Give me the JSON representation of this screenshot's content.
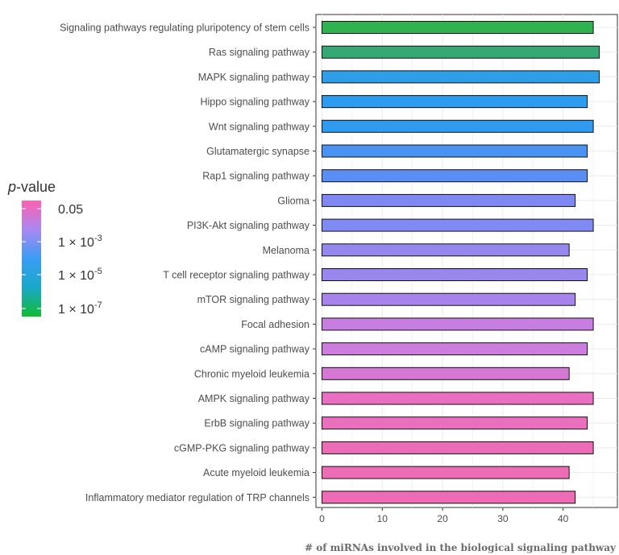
{
  "chart_data": {
    "type": "bar",
    "orientation": "horizontal",
    "categories": [
      "Signaling pathways regulating pluripotency of stem cells",
      "Ras signaling pathway",
      "MAPK signaling pathway",
      "Hippo signaling pathway",
      "Wnt signaling pathway",
      "Glutamatergic synapse",
      "Rap1 signaling pathway",
      "Glioma",
      "PI3K-Akt signaling pathway",
      "Melanoma",
      "T cell receptor signaling pathway",
      "mTOR signaling pathway",
      "Focal adhesion",
      "cAMP signaling pathway",
      "Chronic myeloid leukemia",
      "AMPK signaling pathway",
      "ErbB signaling pathway",
      "cGMP-PKG signaling pathway",
      "Acute myeloid leukemia",
      "Inflammatory mediator regulation of TRP channels"
    ],
    "values": [
      45,
      46,
      46,
      44,
      45,
      44,
      44,
      42,
      45,
      41,
      44,
      42,
      45,
      44,
      41,
      45,
      44,
      45,
      41,
      42
    ],
    "bar_colors": [
      "#2eb350",
      "#36a874",
      "#2f9ee8",
      "#2b9cf0",
      "#2e9bf1",
      "#4a92f3",
      "#5b8ef2",
      "#7f88f0",
      "#7f8af2",
      "#9488ee",
      "#9b86ee",
      "#a784eb",
      "#c87ee0",
      "#cd7ddd",
      "#d577d5",
      "#e86fc1",
      "#ea6fbd",
      "#ec6cb9",
      "#ee6cb6",
      "#ee6cb6"
    ],
    "xlabel": "# of miRNAs involved in the biological signaling pathway",
    "ylabel": "",
    "xlim": [
      -1,
      49
    ],
    "x_ticks": [
      0,
      10,
      20,
      30,
      40
    ],
    "grid": true,
    "legend": {
      "position": "left",
      "title_italic": "p",
      "title_rest": "-value",
      "labels": [
        {
          "base": "0.05",
          "exp": ""
        },
        {
          "base": "1 × 10",
          "exp": "-3"
        },
        {
          "base": "1 × 10",
          "exp": "-5"
        },
        {
          "base": "1 × 10",
          "exp": "-7"
        }
      ],
      "gradient_colors": [
        "#ff5fb0",
        "#a889f0",
        "#3a9cf5",
        "#1aa8c9",
        "#11bb32"
      ]
    }
  }
}
